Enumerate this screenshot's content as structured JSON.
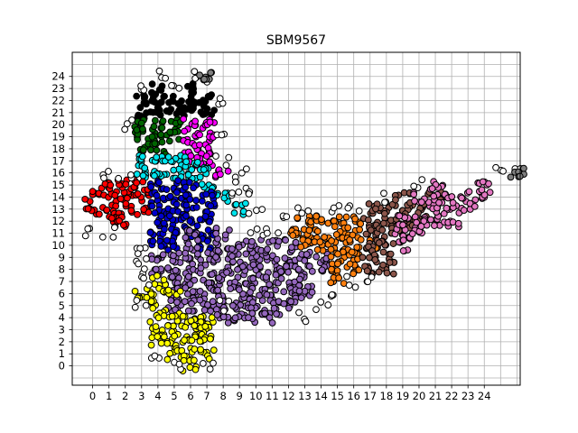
{
  "chart_data": {
    "type": "scatter",
    "title": "SBM9567",
    "xlabel": "",
    "ylabel": "",
    "xlim": [
      -1.25,
      26.2
    ],
    "ylim": [
      -1.6,
      26.0
    ],
    "x_ticks": [
      "0",
      "1",
      "2",
      "3",
      "4",
      "5",
      "6",
      "7",
      "8",
      "9",
      "10",
      "11",
      "12",
      "13",
      "14",
      "15",
      "16",
      "17",
      "18",
      "19",
      "20",
      "21",
      "22",
      "23",
      "24"
    ],
    "y_ticks": [
      "0",
      "1",
      "2",
      "3",
      "4",
      "5",
      "6",
      "7",
      "8",
      "9",
      "10",
      "11",
      "12",
      "13",
      "14",
      "15",
      "16",
      "17",
      "18",
      "19",
      "20",
      "21",
      "22",
      "23",
      "24"
    ],
    "grid": true,
    "legend": "none",
    "marker_edge_color": "#000000",
    "series": [
      {
        "color": "#000000",
        "cells": [
          [
            3,
            22
          ],
          [
            4,
            22
          ],
          [
            5,
            22
          ],
          [
            6,
            22
          ],
          [
            3,
            21
          ],
          [
            4,
            21
          ],
          [
            5,
            21
          ],
          [
            6,
            21
          ],
          [
            7,
            22
          ],
          [
            6,
            23
          ],
          [
            7,
            21
          ],
          [
            4,
            23
          ]
        ]
      },
      {
        "color": "#006400",
        "cells": [
          [
            3,
            19
          ],
          [
            4,
            19
          ],
          [
            3,
            18
          ],
          [
            4,
            18
          ],
          [
            5,
            20
          ],
          [
            5,
            19
          ],
          [
            4,
            20
          ],
          [
            3,
            20
          ]
        ]
      },
      {
        "color": "#ff00ff",
        "cells": [
          [
            6,
            20
          ],
          [
            7,
            20
          ],
          [
            6,
            19
          ],
          [
            7,
            19
          ],
          [
            6,
            18
          ],
          [
            7,
            18
          ],
          [
            7,
            17
          ],
          [
            8,
            16
          ],
          [
            6,
            17
          ]
        ]
      },
      {
        "color": "#00e5ee",
        "cells": [
          [
            3,
            17
          ],
          [
            4,
            17
          ],
          [
            5,
            17
          ],
          [
            6,
            17
          ],
          [
            3,
            16
          ],
          [
            5,
            16
          ],
          [
            6,
            16
          ],
          [
            7,
            16
          ],
          [
            7,
            15
          ],
          [
            8,
            14
          ],
          [
            9,
            13
          ],
          [
            4,
            16
          ]
        ]
      },
      {
        "color": "#ff0000",
        "cells": [
          [
            0,
            14
          ],
          [
            1,
            14
          ],
          [
            2,
            14
          ],
          [
            3,
            14
          ],
          [
            0,
            13
          ],
          [
            1,
            13
          ],
          [
            2,
            13
          ],
          [
            3,
            13
          ],
          [
            1,
            12
          ],
          [
            2,
            12
          ],
          [
            1,
            15
          ],
          [
            2,
            15
          ],
          [
            3,
            15
          ]
        ]
      },
      {
        "color": "#0000cd",
        "cells": [
          [
            4,
            15
          ],
          [
            5,
            15
          ],
          [
            6,
            15
          ],
          [
            4,
            14
          ],
          [
            5,
            14
          ],
          [
            6,
            14
          ],
          [
            7,
            14
          ],
          [
            4,
            13
          ],
          [
            5,
            13
          ],
          [
            6,
            13
          ],
          [
            7,
            13
          ],
          [
            4,
            12
          ],
          [
            5,
            12
          ],
          [
            6,
            12
          ],
          [
            7,
            12
          ],
          [
            4,
            11
          ],
          [
            5,
            11
          ],
          [
            6,
            11
          ],
          [
            7,
            11
          ],
          [
            4,
            10
          ],
          [
            5,
            10
          ],
          [
            7,
            10
          ]
        ]
      },
      {
        "color": "#9467bd",
        "cells": [
          [
            6,
            10
          ],
          [
            6,
            11
          ],
          [
            5,
            9
          ],
          [
            6,
            9
          ],
          [
            7,
            9
          ],
          [
            8,
            9
          ],
          [
            9,
            9
          ],
          [
            10,
            9
          ],
          [
            11,
            9
          ],
          [
            12,
            9
          ],
          [
            13,
            9
          ],
          [
            14,
            9
          ],
          [
            8,
            10
          ],
          [
            8,
            11
          ],
          [
            9,
            10
          ],
          [
            10,
            10
          ],
          [
            11,
            10
          ],
          [
            12,
            10
          ],
          [
            5,
            8
          ],
          [
            6,
            8
          ],
          [
            7,
            8
          ],
          [
            8,
            8
          ],
          [
            9,
            8
          ],
          [
            10,
            8
          ],
          [
            11,
            8
          ],
          [
            12,
            8
          ],
          [
            13,
            8
          ],
          [
            14,
            8
          ],
          [
            5,
            7
          ],
          [
            6,
            7
          ],
          [
            7,
            7
          ],
          [
            8,
            7
          ],
          [
            9,
            7
          ],
          [
            10,
            7
          ],
          [
            11,
            7
          ],
          [
            12,
            7
          ],
          [
            13,
            7
          ],
          [
            5,
            6
          ],
          [
            6,
            6
          ],
          [
            7,
            6
          ],
          [
            8,
            6
          ],
          [
            9,
            6
          ],
          [
            10,
            6
          ],
          [
            11,
            6
          ],
          [
            12,
            6
          ],
          [
            13,
            6
          ],
          [
            5,
            5
          ],
          [
            6,
            5
          ],
          [
            7,
            5
          ],
          [
            8,
            5
          ],
          [
            9,
            5
          ],
          [
            10,
            5
          ],
          [
            11,
            5
          ],
          [
            12,
            5
          ],
          [
            8,
            4
          ],
          [
            9,
            4
          ],
          [
            10,
            4
          ],
          [
            11,
            4
          ],
          [
            4,
            8
          ],
          [
            4,
            9
          ]
        ]
      },
      {
        "color": "#ffff00",
        "cells": [
          [
            4,
            7
          ],
          [
            4,
            6
          ],
          [
            4,
            5
          ],
          [
            5,
            6
          ],
          [
            4,
            4
          ],
          [
            5,
            4
          ],
          [
            6,
            4
          ],
          [
            7,
            4
          ],
          [
            4,
            3
          ],
          [
            5,
            3
          ],
          [
            6,
            3
          ],
          [
            7,
            3
          ],
          [
            5,
            2
          ],
          [
            6,
            2
          ],
          [
            7,
            2
          ],
          [
            5,
            1
          ],
          [
            6,
            1
          ],
          [
            6,
            0
          ],
          [
            3,
            6
          ],
          [
            4,
            2
          ],
          [
            7,
            1
          ]
        ]
      },
      {
        "color": "#ff7f0e",
        "cells": [
          [
            13,
            12
          ],
          [
            14,
            12
          ],
          [
            15,
            12
          ],
          [
            13,
            11
          ],
          [
            14,
            11
          ],
          [
            15,
            11
          ],
          [
            16,
            11
          ],
          [
            13,
            10
          ],
          [
            14,
            10
          ],
          [
            15,
            10
          ],
          [
            16,
            10
          ],
          [
            15,
            9
          ],
          [
            16,
            9
          ],
          [
            15,
            8
          ],
          [
            16,
            8
          ],
          [
            15,
            7
          ],
          [
            17,
            10
          ],
          [
            12,
            11
          ],
          [
            16,
            12
          ]
        ]
      },
      {
        "color": "#8c564b",
        "cells": [
          [
            17,
            12
          ],
          [
            18,
            12
          ],
          [
            19,
            12
          ],
          [
            20,
            13
          ],
          [
            19,
            13
          ],
          [
            18,
            13
          ],
          [
            17,
            11
          ],
          [
            18,
            11
          ],
          [
            19,
            11
          ],
          [
            20,
            12
          ],
          [
            17,
            10
          ],
          [
            18,
            10
          ],
          [
            17,
            9
          ],
          [
            18,
            9
          ],
          [
            17,
            8
          ],
          [
            18,
            8
          ],
          [
            21,
            14
          ],
          [
            19,
            14
          ],
          [
            17,
            13
          ]
        ]
      },
      {
        "color": "#e377c2",
        "cells": [
          [
            19,
            11
          ],
          [
            19,
            12
          ],
          [
            20,
            11
          ],
          [
            20,
            12
          ],
          [
            21,
            12
          ],
          [
            21,
            13
          ],
          [
            22,
            13
          ],
          [
            22,
            12
          ],
          [
            21,
            14
          ],
          [
            22,
            14
          ],
          [
            23,
            14
          ],
          [
            23,
            13
          ],
          [
            24,
            14
          ],
          [
            24,
            15
          ],
          [
            20,
            14
          ],
          [
            21,
            15
          ],
          [
            19,
            10
          ]
        ]
      },
      {
        "color": "#ffffff",
        "cells": [
          [
            3,
            23
          ],
          [
            4,
            24
          ],
          [
            5,
            23
          ],
          [
            6,
            24
          ],
          [
            7,
            24
          ],
          [
            8,
            22
          ],
          [
            2,
            20
          ],
          [
            8,
            19
          ],
          [
            8,
            17
          ],
          [
            9,
            16
          ],
          [
            9,
            15
          ],
          [
            10,
            14
          ],
          [
            9,
            14
          ],
          [
            10,
            13
          ],
          [
            0,
            11
          ],
          [
            1,
            16
          ],
          [
            2,
            16
          ],
          [
            1,
            11
          ],
          [
            3,
            10
          ],
          [
            3,
            9
          ],
          [
            3,
            8
          ],
          [
            3,
            7
          ],
          [
            3,
            5
          ],
          [
            4,
            1
          ],
          [
            5,
            0
          ],
          [
            7,
            0
          ],
          [
            8,
            5
          ],
          [
            10,
            11
          ],
          [
            11,
            11
          ],
          [
            12,
            12
          ],
          [
            13,
            13
          ],
          [
            15,
            13
          ],
          [
            16,
            13
          ],
          [
            13,
            4
          ],
          [
            14,
            5
          ],
          [
            15,
            6
          ],
          [
            16,
            7
          ],
          [
            17,
            7
          ],
          [
            18,
            14
          ],
          [
            20,
            15
          ],
          [
            25,
            16
          ],
          [
            26,
            16
          ]
        ]
      },
      {
        "color": "#7f7f7f",
        "cells": [
          [
            7,
            24
          ],
          [
            26,
            16
          ]
        ]
      }
    ]
  }
}
